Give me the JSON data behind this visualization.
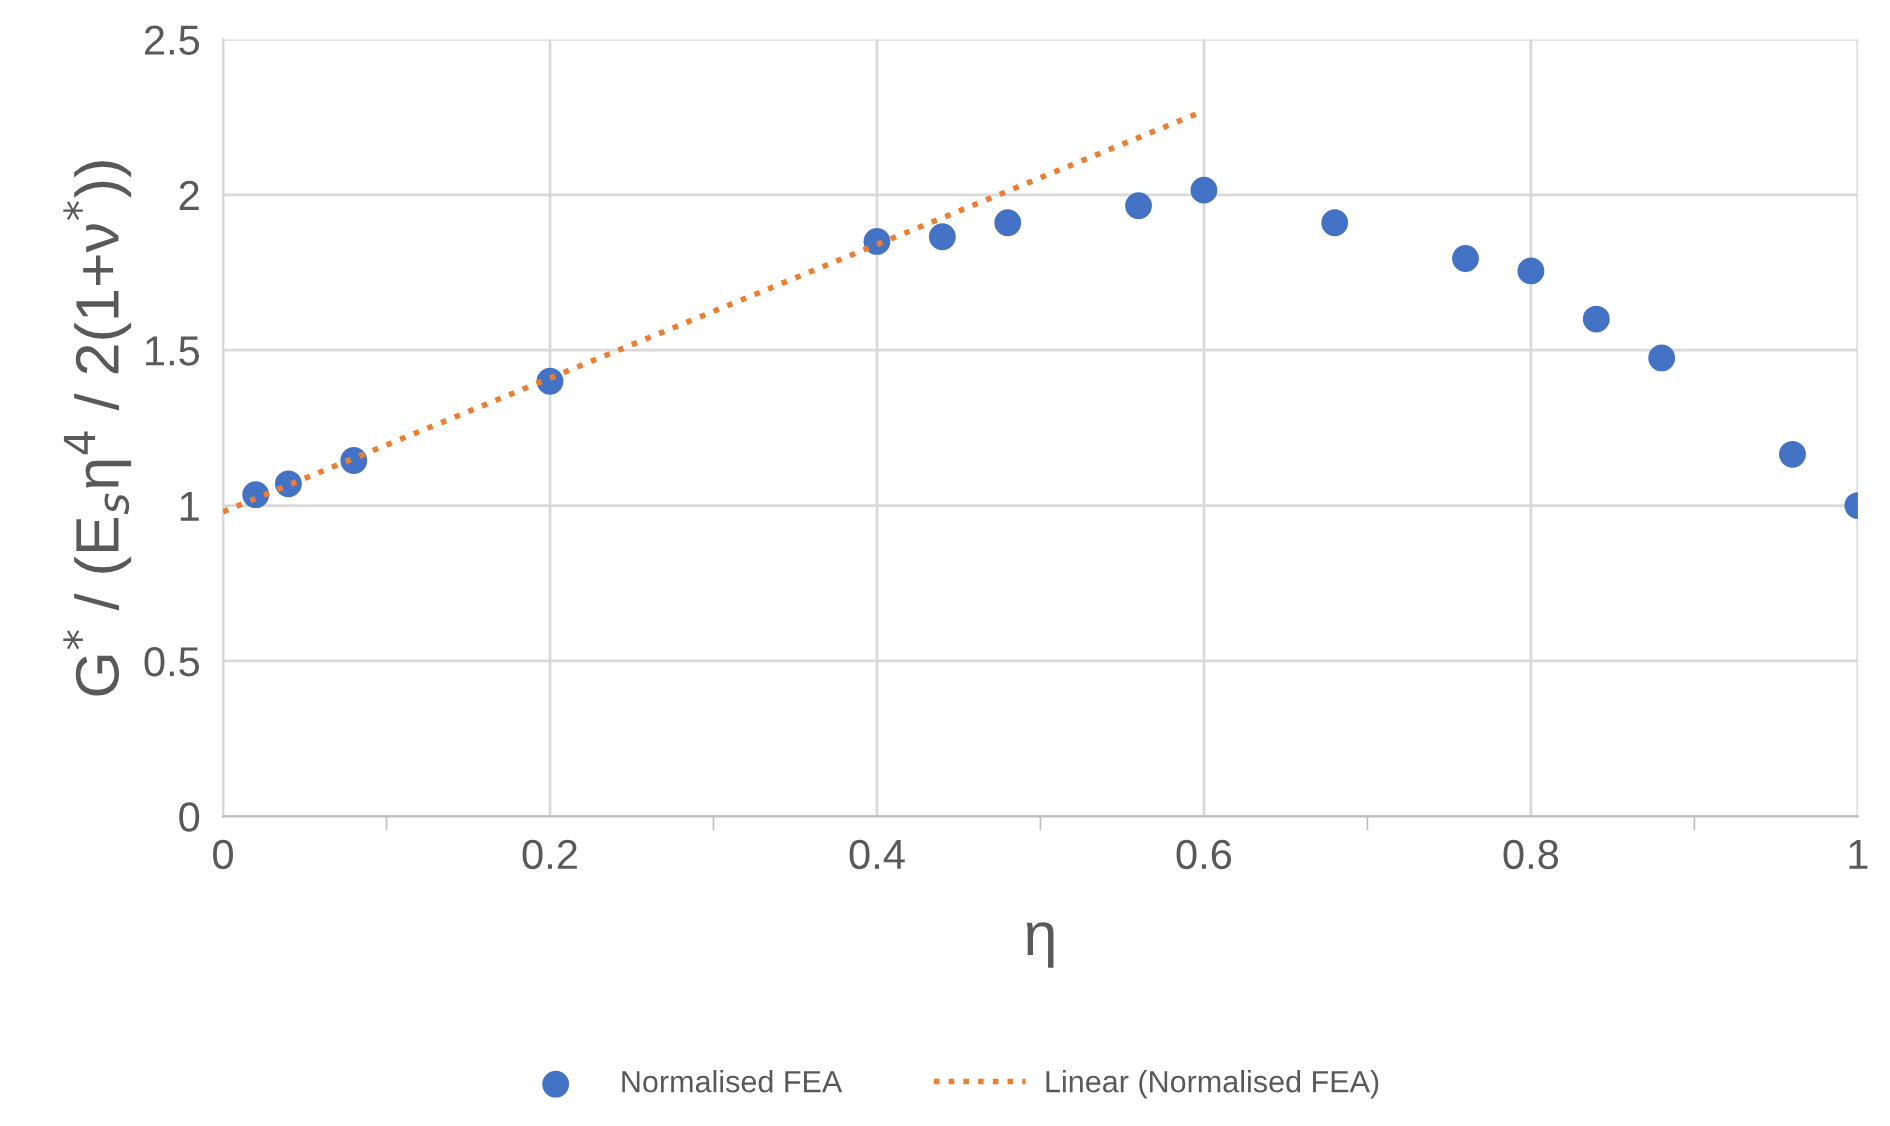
{
  "chart_data": {
    "type": "scatter",
    "xlabel": "η",
    "ylabel": "G$^{*}$ / (E$_{s}$η$^{4}$ / 2(1+ν$^{*}$))",
    "x": [
      0.02,
      0.04,
      0.08,
      0.2,
      0.4,
      0.44,
      0.48,
      0.56,
      0.6,
      0.68,
      0.76,
      0.8,
      0.84,
      0.88,
      0.96,
      1.0
    ],
    "series": [
      {
        "name": "Normalised FEA",
        "color": "#4472c4",
        "marker": "circle",
        "values": [
          1.035,
          1.07,
          1.145,
          1.4,
          1.85,
          1.865,
          1.91,
          1.965,
          2.015,
          1.91,
          1.795,
          1.755,
          1.6,
          1.475,
          1.165,
          1.0
        ]
      },
      {
        "name": "Linear (Normalised FEA)",
        "type": "line",
        "color": "#ed7d31",
        "line_style": "dotted",
        "marker": "none",
        "x": [
          0,
          0.6
        ],
        "values": [
          0.98,
          2.27
        ]
      }
    ],
    "xlim": [
      0,
      1
    ],
    "xticks": [
      0,
      {
        "value": 0.1,
        "label": null
      },
      0.2,
      {
        "value": 0.3,
        "label": null
      },
      0.4,
      {
        "value": 0.5,
        "label": null
      },
      0.6,
      {
        "value": 0.7,
        "label": null
      },
      0.8,
      {
        "value": 0.9,
        "label": null
      },
      1
    ],
    "ylim": [
      0,
      2.5
    ],
    "yticks": [
      0,
      0.5,
      1,
      1.5,
      2,
      2.5
    ],
    "grid": true,
    "legend": "bottom"
  }
}
